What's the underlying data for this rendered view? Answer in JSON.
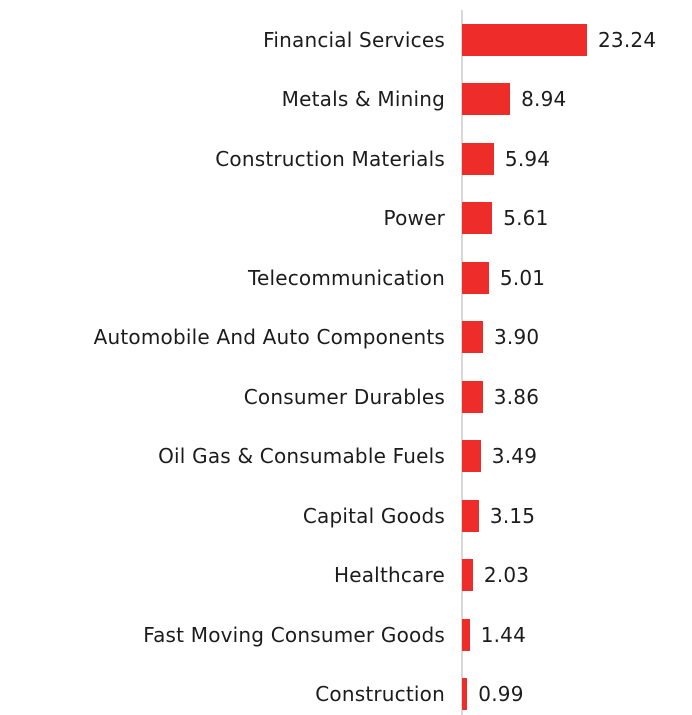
{
  "chart_data": {
    "type": "bar",
    "orientation": "horizontal",
    "title": "",
    "xlabel": "",
    "ylabel": "",
    "xlim": [
      0,
      24.5
    ],
    "grid": false,
    "legend": false,
    "bar_color": "#ee2d2b",
    "baseline_color": "#d8d8d8",
    "text_color": "#1c1c1c",
    "categories": [
      "Financial Services",
      "Metals & Mining",
      "Construction Materials",
      "Power",
      "Telecommunication",
      "Automobile And Auto Components",
      "Consumer Durables",
      "Oil Gas & Consumable Fuels",
      "Capital Goods",
      "Healthcare",
      "Fast Moving Consumer Goods",
      "Construction"
    ],
    "values": [
      23.24,
      8.94,
      5.94,
      5.61,
      5.01,
      3.9,
      3.86,
      3.49,
      3.15,
      2.03,
      1.44,
      0.99
    ],
    "value_labels": [
      "23.24",
      "8.94",
      "5.94",
      "5.61",
      "5.01",
      "3.90",
      "3.86",
      "3.49",
      "3.15",
      "2.03",
      "1.44",
      "0.99"
    ]
  }
}
